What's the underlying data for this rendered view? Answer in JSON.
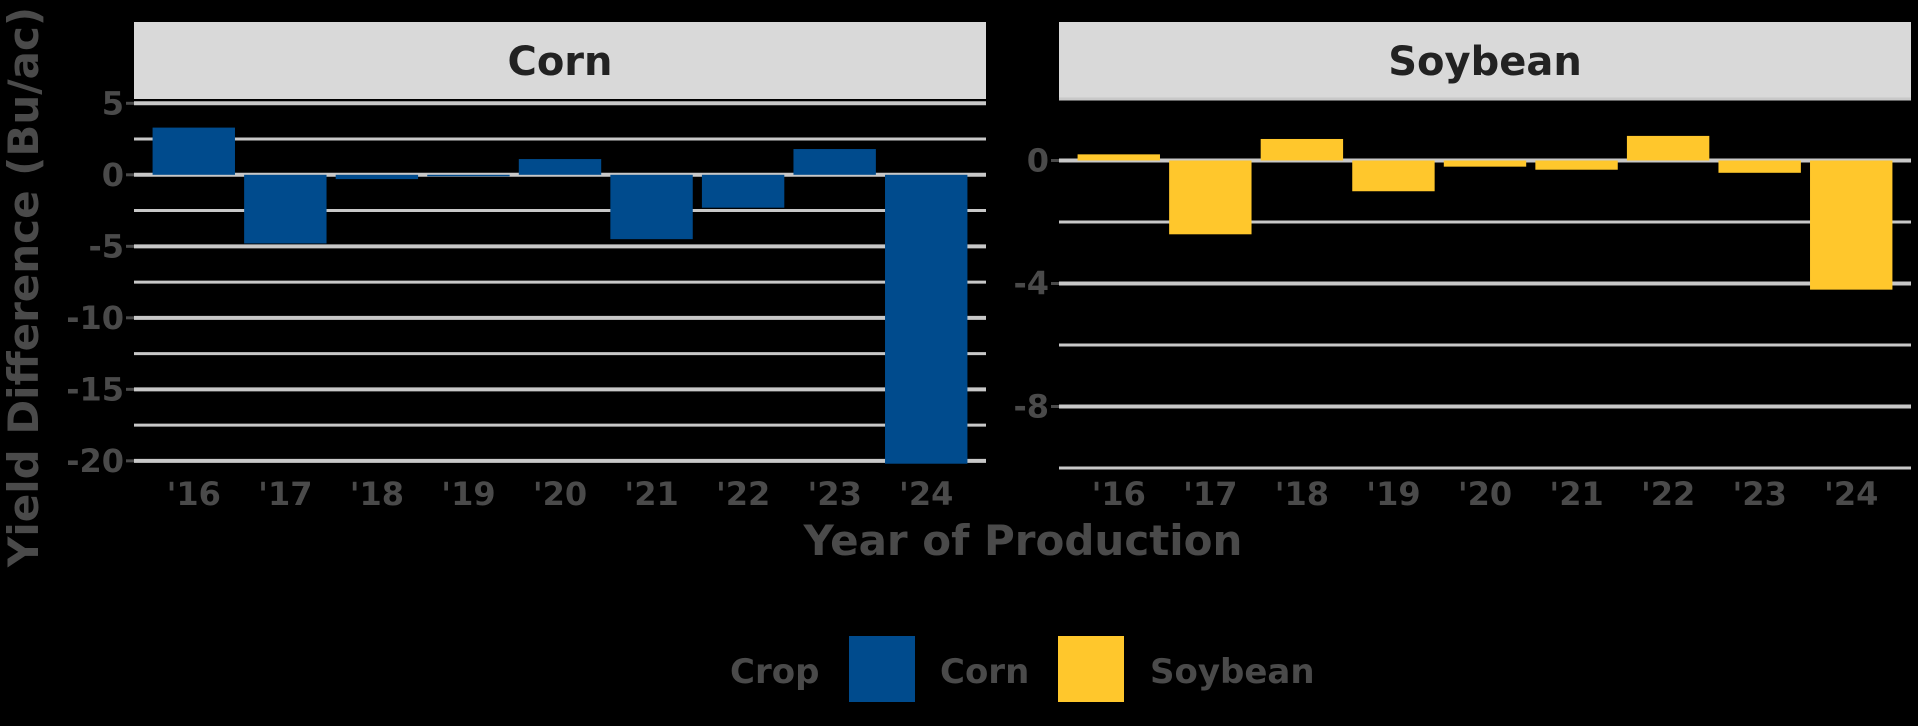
{
  "chart_data": {
    "type": "bar",
    "facet_layout": "two panels side by side",
    "categories": [
      "'16",
      "'17",
      "'18",
      "'19",
      "'20",
      "'21",
      "'22",
      "'23",
      "'24"
    ],
    "xlabel": "Year of Production",
    "ylabel": "Yield Difference (Bu/ac)",
    "grid": true,
    "colors": {
      "Corn": "#004b8d",
      "Soybean": "#ffc72c",
      "strip_bg": "#d9d9d9",
      "grid": "#c8c8c8"
    },
    "panels": [
      {
        "title": "Corn",
        "series": "Corn",
        "values": [
          3.3,
          -4.8,
          -0.3,
          -0.1,
          1.1,
          -4.5,
          -2.3,
          1.8,
          -20.2
        ],
        "ylim": [
          -20.5,
          5.3
        ],
        "yticks": [
          5,
          0,
          -5,
          -10,
          -15,
          -20
        ],
        "ytick_labels": [
          "5",
          "0",
          "-5",
          "-10",
          "-15",
          "-20"
        ],
        "minor_grid": [
          2.5,
          -2.5,
          -7.5,
          -12.5,
          -17.5
        ]
      },
      {
        "title": "Soybean",
        "series": "Soybean",
        "values": [
          0.2,
          -2.4,
          0.7,
          -1.0,
          -0.2,
          -0.3,
          0.8,
          -0.4,
          -4.2
        ],
        "ylim": [
          -10.0,
          2.0
        ],
        "yticks": [
          0,
          -4,
          -8
        ],
        "ytick_labels": [
          "0",
          "-4",
          "-8"
        ],
        "minor_grid": [
          2,
          -2,
          -6,
          -10
        ]
      }
    ],
    "legend": {
      "title": "Crop",
      "position": "bottom",
      "entries": [
        {
          "label": "Corn",
          "color": "#004b8d"
        },
        {
          "label": "Soybean",
          "color": "#ffc72c"
        }
      ]
    }
  }
}
